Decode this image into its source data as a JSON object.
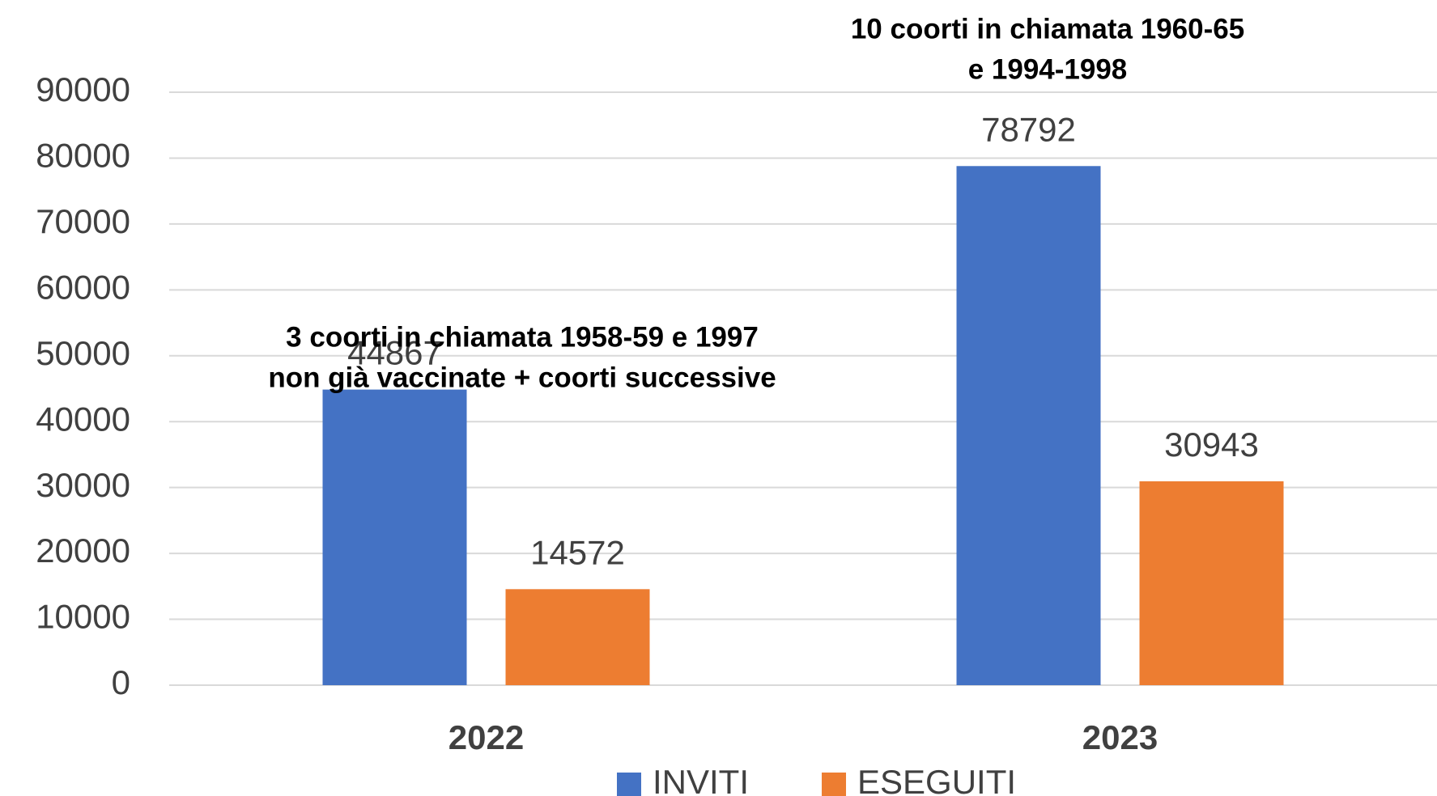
{
  "chart_data": {
    "type": "bar",
    "categories": [
      "2022",
      "2023"
    ],
    "series": [
      {
        "name": "INVITI",
        "color": "#4472c4",
        "values": [
          44867,
          78792
        ]
      },
      {
        "name": "ESEGUITI",
        "color": "#ed7d31",
        "values": [
          14572,
          30943
        ]
      }
    ],
    "ylim": [
      0,
      90000
    ],
    "yticks": [
      0,
      10000,
      20000,
      30000,
      40000,
      50000,
      60000,
      70000,
      80000,
      90000
    ],
    "grid": true,
    "legend": "bottom",
    "annotations": [
      [
        "3 coorti in chiamata 1958-59 e 1997",
        "non già vaccinate + coorti successive"
      ],
      [
        "10 coorti in chiamata 1960-65",
        "e 1994-1998"
      ]
    ]
  }
}
